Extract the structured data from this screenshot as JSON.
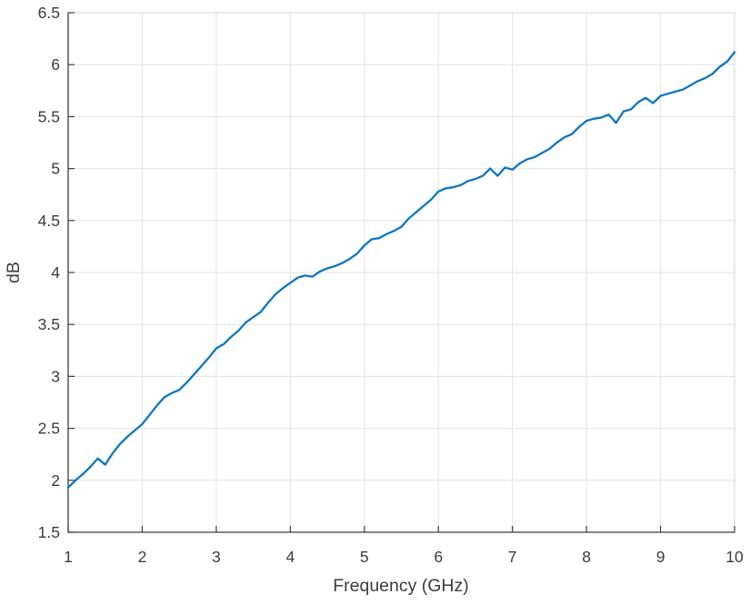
{
  "figure": {
    "background": "#ffffff"
  },
  "chart_data": {
    "type": "line",
    "title": "",
    "xlabel": "Frequency (GHz)",
    "ylabel": "dB",
    "xlim": [
      1,
      10
    ],
    "ylim": [
      1.5,
      6.5
    ],
    "grid": true,
    "legend": null,
    "x_ticks": [
      1,
      2,
      3,
      4,
      5,
      6,
      7,
      8,
      9,
      10
    ],
    "x_tick_labels": [
      "1",
      "2",
      "3",
      "4",
      "5",
      "6",
      "7",
      "8",
      "9",
      "10"
    ],
    "y_ticks": [
      1.5,
      2,
      2.5,
      3,
      3.5,
      4,
      4.5,
      5,
      5.5,
      6,
      6.5
    ],
    "y_tick_labels": [
      "1.5",
      "2",
      "2.5",
      "3",
      "3.5",
      "4",
      "4.5",
      "5",
      "5.5",
      "6",
      "6.5"
    ],
    "colors": {
      "line": "#0d76c0",
      "grid": "#e2e2e2",
      "axis": "#3c3c3c",
      "box_far": "#d4d4d4",
      "text": "#3c3c3c"
    },
    "series": [
      {
        "x": [
          1.0,
          1.1,
          1.2,
          1.3,
          1.4,
          1.5,
          1.6,
          1.7,
          1.8,
          1.9,
          2.0,
          2.1,
          2.2,
          2.3,
          2.4,
          2.5,
          2.6,
          2.7,
          2.8,
          2.9,
          3.0,
          3.1,
          3.2,
          3.3,
          3.4,
          3.5,
          3.6,
          3.7,
          3.8,
          3.9,
          4.0,
          4.1,
          4.2,
          4.3,
          4.4,
          4.5,
          4.6,
          4.7,
          4.8,
          4.9,
          5.0,
          5.1,
          5.2,
          5.3,
          5.4,
          5.5,
          5.6,
          5.7,
          5.8,
          5.9,
          6.0,
          6.1,
          6.2,
          6.3,
          6.4,
          6.5,
          6.6,
          6.7,
          6.8,
          6.9,
          7.0,
          7.1,
          7.2,
          7.3,
          7.4,
          7.5,
          7.6,
          7.7,
          7.8,
          7.9,
          8.0,
          8.1,
          8.2,
          8.3,
          8.4,
          8.5,
          8.6,
          8.7,
          8.8,
          8.9,
          9.0,
          9.1,
          9.2,
          9.3,
          9.4,
          9.5,
          9.6,
          9.7,
          9.8,
          9.9,
          10.0
        ],
        "y": [
          1.93,
          2.0,
          2.06,
          2.13,
          2.21,
          2.15,
          2.26,
          2.35,
          2.42,
          2.48,
          2.54,
          2.63,
          2.72,
          2.8,
          2.84,
          2.87,
          2.94,
          3.02,
          3.1,
          3.18,
          3.27,
          3.31,
          3.38,
          3.44,
          3.52,
          3.57,
          3.62,
          3.71,
          3.79,
          3.85,
          3.9,
          3.95,
          3.97,
          3.96,
          4.01,
          4.04,
          4.06,
          4.09,
          4.13,
          4.18,
          4.26,
          4.32,
          4.33,
          4.37,
          4.4,
          4.44,
          4.52,
          4.58,
          4.64,
          4.7,
          4.78,
          4.81,
          4.82,
          4.84,
          4.88,
          4.9,
          4.93,
          5.0,
          4.93,
          5.01,
          4.99,
          5.05,
          5.09,
          5.11,
          5.15,
          5.19,
          5.25,
          5.3,
          5.33,
          5.4,
          5.46,
          5.48,
          5.49,
          5.52,
          5.44,
          5.55,
          5.57,
          5.64,
          5.68,
          5.63,
          5.7,
          5.72,
          5.74,
          5.76,
          5.8,
          5.84,
          5.87,
          5.91,
          5.98,
          6.03,
          6.12
        ]
      }
    ]
  }
}
